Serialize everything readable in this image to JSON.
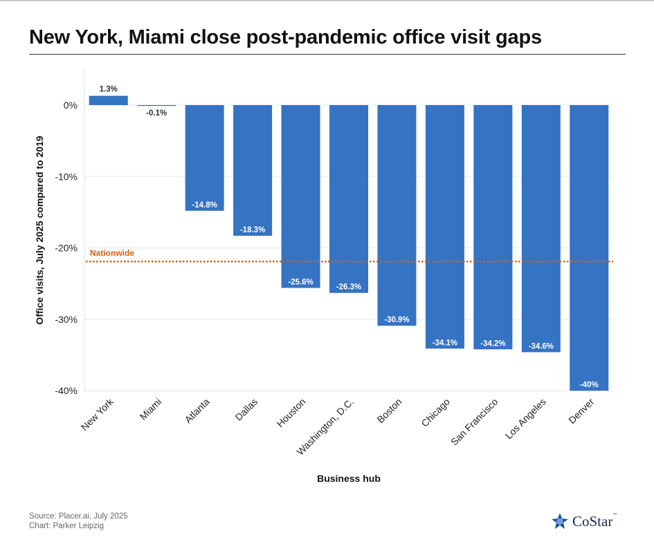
{
  "title": "New York, Miami close post-pandemic office visit gaps",
  "footer": {
    "source": "Source: Placer.ai, July 2025",
    "credit": "Chart: Parker Leipzig"
  },
  "logo": {
    "text": "CoStar",
    "tm": "™",
    "icon": "costar-star-icon"
  },
  "colors": {
    "bar": "#3573c3",
    "reference": "#d4600f",
    "grid": "#e6e6e6"
  },
  "chart_data": {
    "type": "bar",
    "title": "New York, Miami close post-pandemic office visit gaps",
    "xlabel": "Business hub",
    "ylabel": "Office visits, July 2025 compared to 2019",
    "categories": [
      "New York",
      "Miami",
      "Atlanta",
      "Dallas",
      "Houston",
      "Washington, D.C.",
      "Boston",
      "Chicago",
      "San Francisco",
      "Los Angeles",
      "Denver"
    ],
    "values": [
      1.3,
      -0.1,
      -14.8,
      -18.3,
      -25.6,
      -26.3,
      -30.9,
      -34.1,
      -34.2,
      -34.6,
      -40
    ],
    "data_labels": [
      "1.3%",
      "-0.1%",
      "-14.8%",
      "-18.3%",
      "-25.6%",
      "-26.3%",
      "-30.9%",
      "-34.1%",
      "-34.2%",
      "-34.6%",
      "-40%"
    ],
    "ylim": [
      -40,
      0
    ],
    "yticks": [
      0,
      -10,
      -20,
      -30,
      -40
    ],
    "ytick_labels": [
      "0%",
      "-10%",
      "-20%",
      "-30%",
      "-40%"
    ],
    "grid": true,
    "reference_line": {
      "label": "Nationwide",
      "value": -21.9
    }
  }
}
